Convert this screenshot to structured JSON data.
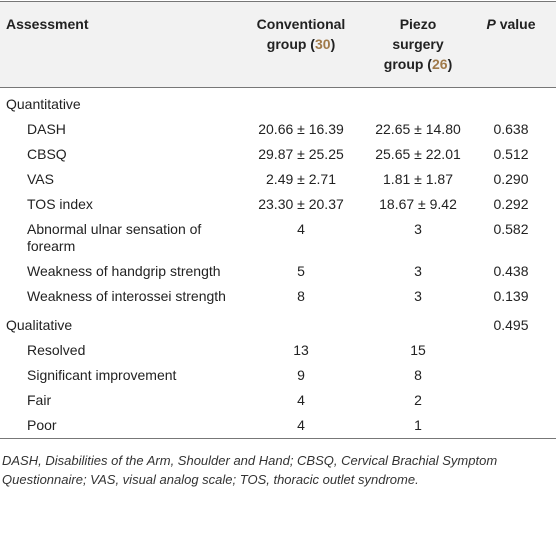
{
  "table": {
    "header": {
      "assessment": "Assessment",
      "conventional": [
        "Conventional group (",
        "30",
        ")"
      ],
      "piezo": [
        "Piezo surgery group (",
        "26",
        ")"
      ],
      "p_value": [
        "P",
        " value"
      ]
    },
    "sections": [
      {
        "label": "Quantitative",
        "rows": [
          {
            "label": "DASH",
            "conventional": "20.66 ± 16.39",
            "piezo": "22.65 ± 14.80",
            "p_value": "0.638"
          },
          {
            "label": "CBSQ",
            "conventional": "29.87 ± 25.25",
            "piezo": "25.65 ± 22.01",
            "p_value": "0.512"
          },
          {
            "label": "VAS",
            "conventional": "2.49 ± 2.71",
            "piezo": "1.81 ± 1.87",
            "p_value": "0.290"
          },
          {
            "label": "TOS index",
            "conventional": "23.30 ± 20.37",
            "piezo": "18.67 ± 9.42",
            "p_value": "0.292"
          },
          {
            "label": "Abnormal ulnar sensation of forearm",
            "conventional": "4",
            "piezo": "3",
            "p_value": "0.582"
          },
          {
            "label": "Weakness of handgrip strength",
            "conventional": "5",
            "piezo": "3",
            "p_value": "0.438"
          },
          {
            "label": "Weakness of interossei strength",
            "conventional": "8",
            "piezo": "3",
            "p_value": "0.139"
          }
        ]
      },
      {
        "label": "Qualitative",
        "p_value": "0.495",
        "rows": [
          {
            "label": "Resolved",
            "conventional": "13",
            "piezo": "15"
          },
          {
            "label": "Significant improvement",
            "conventional": "9",
            "piezo": "8"
          },
          {
            "label": "Fair",
            "conventional": "4",
            "piezo": "2"
          },
          {
            "label": "Poor",
            "conventional": "4",
            "piezo": "1"
          }
        ]
      }
    ],
    "footnote": "DASH, Disabilities of the Arm, Shoulder and Hand; CBSQ, Cervical Brachial Symptom Questionnaire; VAS, visual analog scale; TOS, thoracic outlet syndrome."
  }
}
